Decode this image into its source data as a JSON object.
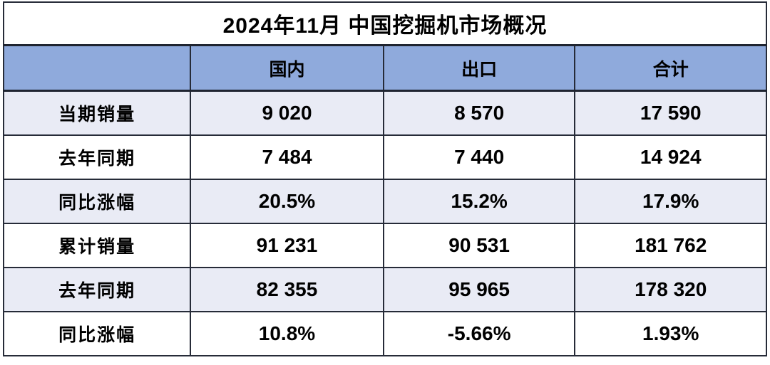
{
  "title": "2024年11月 中国挖掘机市场概况",
  "colors": {
    "header_bg": "#8faadc",
    "banded_row_bg": "#e9ebf5",
    "plain_row_bg": "#ffffff",
    "border": "#262b38",
    "text": "#000000"
  },
  "chart_data": {
    "type": "table",
    "title": "2024年11月 中国挖掘机市场概况",
    "columns": [
      "",
      "国内",
      "出口",
      "合计"
    ],
    "rows": [
      {
        "label": "当期销量",
        "values": [
          "9 020",
          "8 570",
          "17 590"
        ]
      },
      {
        "label": "去年同期",
        "values": [
          "7 484",
          "7 440",
          "14 924"
        ]
      },
      {
        "label": "同比涨幅",
        "values": [
          "20.5%",
          "15.2%",
          "17.9%"
        ]
      },
      {
        "label": "累计销量",
        "values": [
          "91 231",
          "90 531",
          "181 762"
        ]
      },
      {
        "label": "去年同期",
        "values": [
          "82 355",
          "95 965",
          "178 320"
        ]
      },
      {
        "label": "同比涨幅",
        "values": [
          "10.8%",
          "-5.66%",
          "1.93%"
        ]
      }
    ],
    "notes": {
      "units": "台 (units), thousands separated by space",
      "layout": "title row spans all columns; first body column is row label; rows alternate light-blue banding starting with first data row"
    }
  }
}
